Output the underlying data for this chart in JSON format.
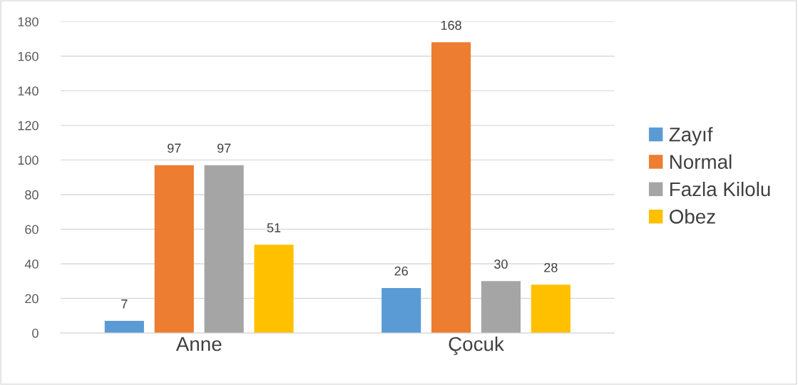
{
  "chart_data": {
    "type": "bar",
    "categories": [
      "Anne",
      "Çocuk"
    ],
    "series": [
      {
        "name": "Zayıf",
        "color": "#5b9bd5",
        "values": [
          7,
          26
        ]
      },
      {
        "name": "Normal",
        "color": "#ed7d31",
        "values": [
          97,
          168
        ]
      },
      {
        "name": "Fazla Kilolu",
        "color": "#a5a5a5",
        "values": [
          97,
          30
        ]
      },
      {
        "name": "Obez",
        "color": "#ffc000",
        "values": [
          51,
          28
        ]
      }
    ],
    "ylim": [
      0,
      180
    ],
    "yticks": [
      0,
      20,
      40,
      60,
      80,
      100,
      120,
      140,
      160,
      180
    ],
    "grid": "y",
    "legend": "right",
    "data_labels": true
  }
}
